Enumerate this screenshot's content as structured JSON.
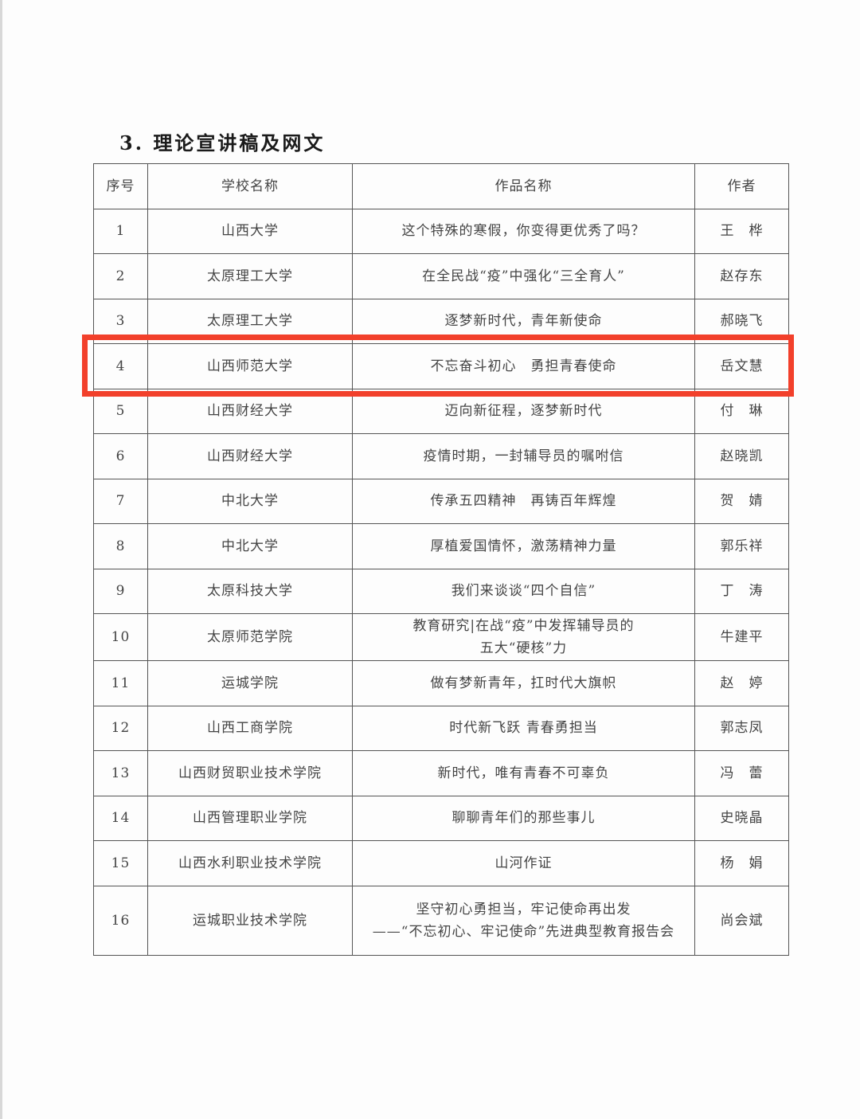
{
  "section_heading": "3. 理论宣讲稿及网文",
  "table": {
    "headers": [
      "序号",
      "学校名称",
      "作品名称",
      "作者"
    ],
    "rows": [
      {
        "no": "1",
        "school": "山西大学",
        "title": "这个特殊的寒假，你变得更优秀了吗？",
        "author": "王　桦"
      },
      {
        "no": "2",
        "school": "太原理工大学",
        "title": "在全民战“疫”中强化“三全育人”",
        "author": "赵存东"
      },
      {
        "no": "3",
        "school": "太原理工大学",
        "title": "逐梦新时代，青年新使命",
        "author": "郝晓飞"
      },
      {
        "no": "4",
        "school": "山西师范大学",
        "title": "不忘奋斗初心　勇担青春使命",
        "author": "岳文慧"
      },
      {
        "no": "5",
        "school": "山西财经大学",
        "title": "迈向新征程，逐梦新时代",
        "author": "付　琳"
      },
      {
        "no": "6",
        "school": "山西财经大学",
        "title": "疫情时期，一封辅导员的嘱咐信",
        "author": "赵晓凯"
      },
      {
        "no": "7",
        "school": "中北大学",
        "title": "传承五四精神　再铸百年辉煌",
        "author": "贺　婧"
      },
      {
        "no": "8",
        "school": "中北大学",
        "title": "厚植爱国情怀，激荡精神力量",
        "author": "郭乐祥"
      },
      {
        "no": "9",
        "school": "太原科技大学",
        "title": "我们来谈谈“四个自信”",
        "author": "丁　涛"
      },
      {
        "no": "10",
        "school": "太原师范学院",
        "title": "教育研究|在战“疫”中发挥辅导员的\n五大“硬核”力",
        "author": "牛建平"
      },
      {
        "no": "11",
        "school": "运城学院",
        "title": "做有梦新青年，扛时代大旗帜",
        "author": "赵　婷"
      },
      {
        "no": "12",
        "school": "山西工商学院",
        "title": "时代新飞跃 青春勇担当",
        "author": "郭志凤"
      },
      {
        "no": "13",
        "school": "山西财贸职业技术学院",
        "title": "新时代，唯有青春不可辜负",
        "author": "冯　蕾"
      },
      {
        "no": "14",
        "school": "山西管理职业学院",
        "title": "聊聊青年们的那些事儿",
        "author": "史晓晶"
      },
      {
        "no": "15",
        "school": "山西水利职业技术学院",
        "title": "山河作证",
        "author": "杨　娟"
      },
      {
        "no": "16",
        "school": "运城职业技术学院",
        "title": "坚守初心勇担当，牢记使命再出发\n——“不忘初心、牢记使命”先进典型教育报告会",
        "author": "尚会斌"
      }
    ]
  },
  "highlight": {
    "row": "4",
    "color": "#f2402b"
  }
}
